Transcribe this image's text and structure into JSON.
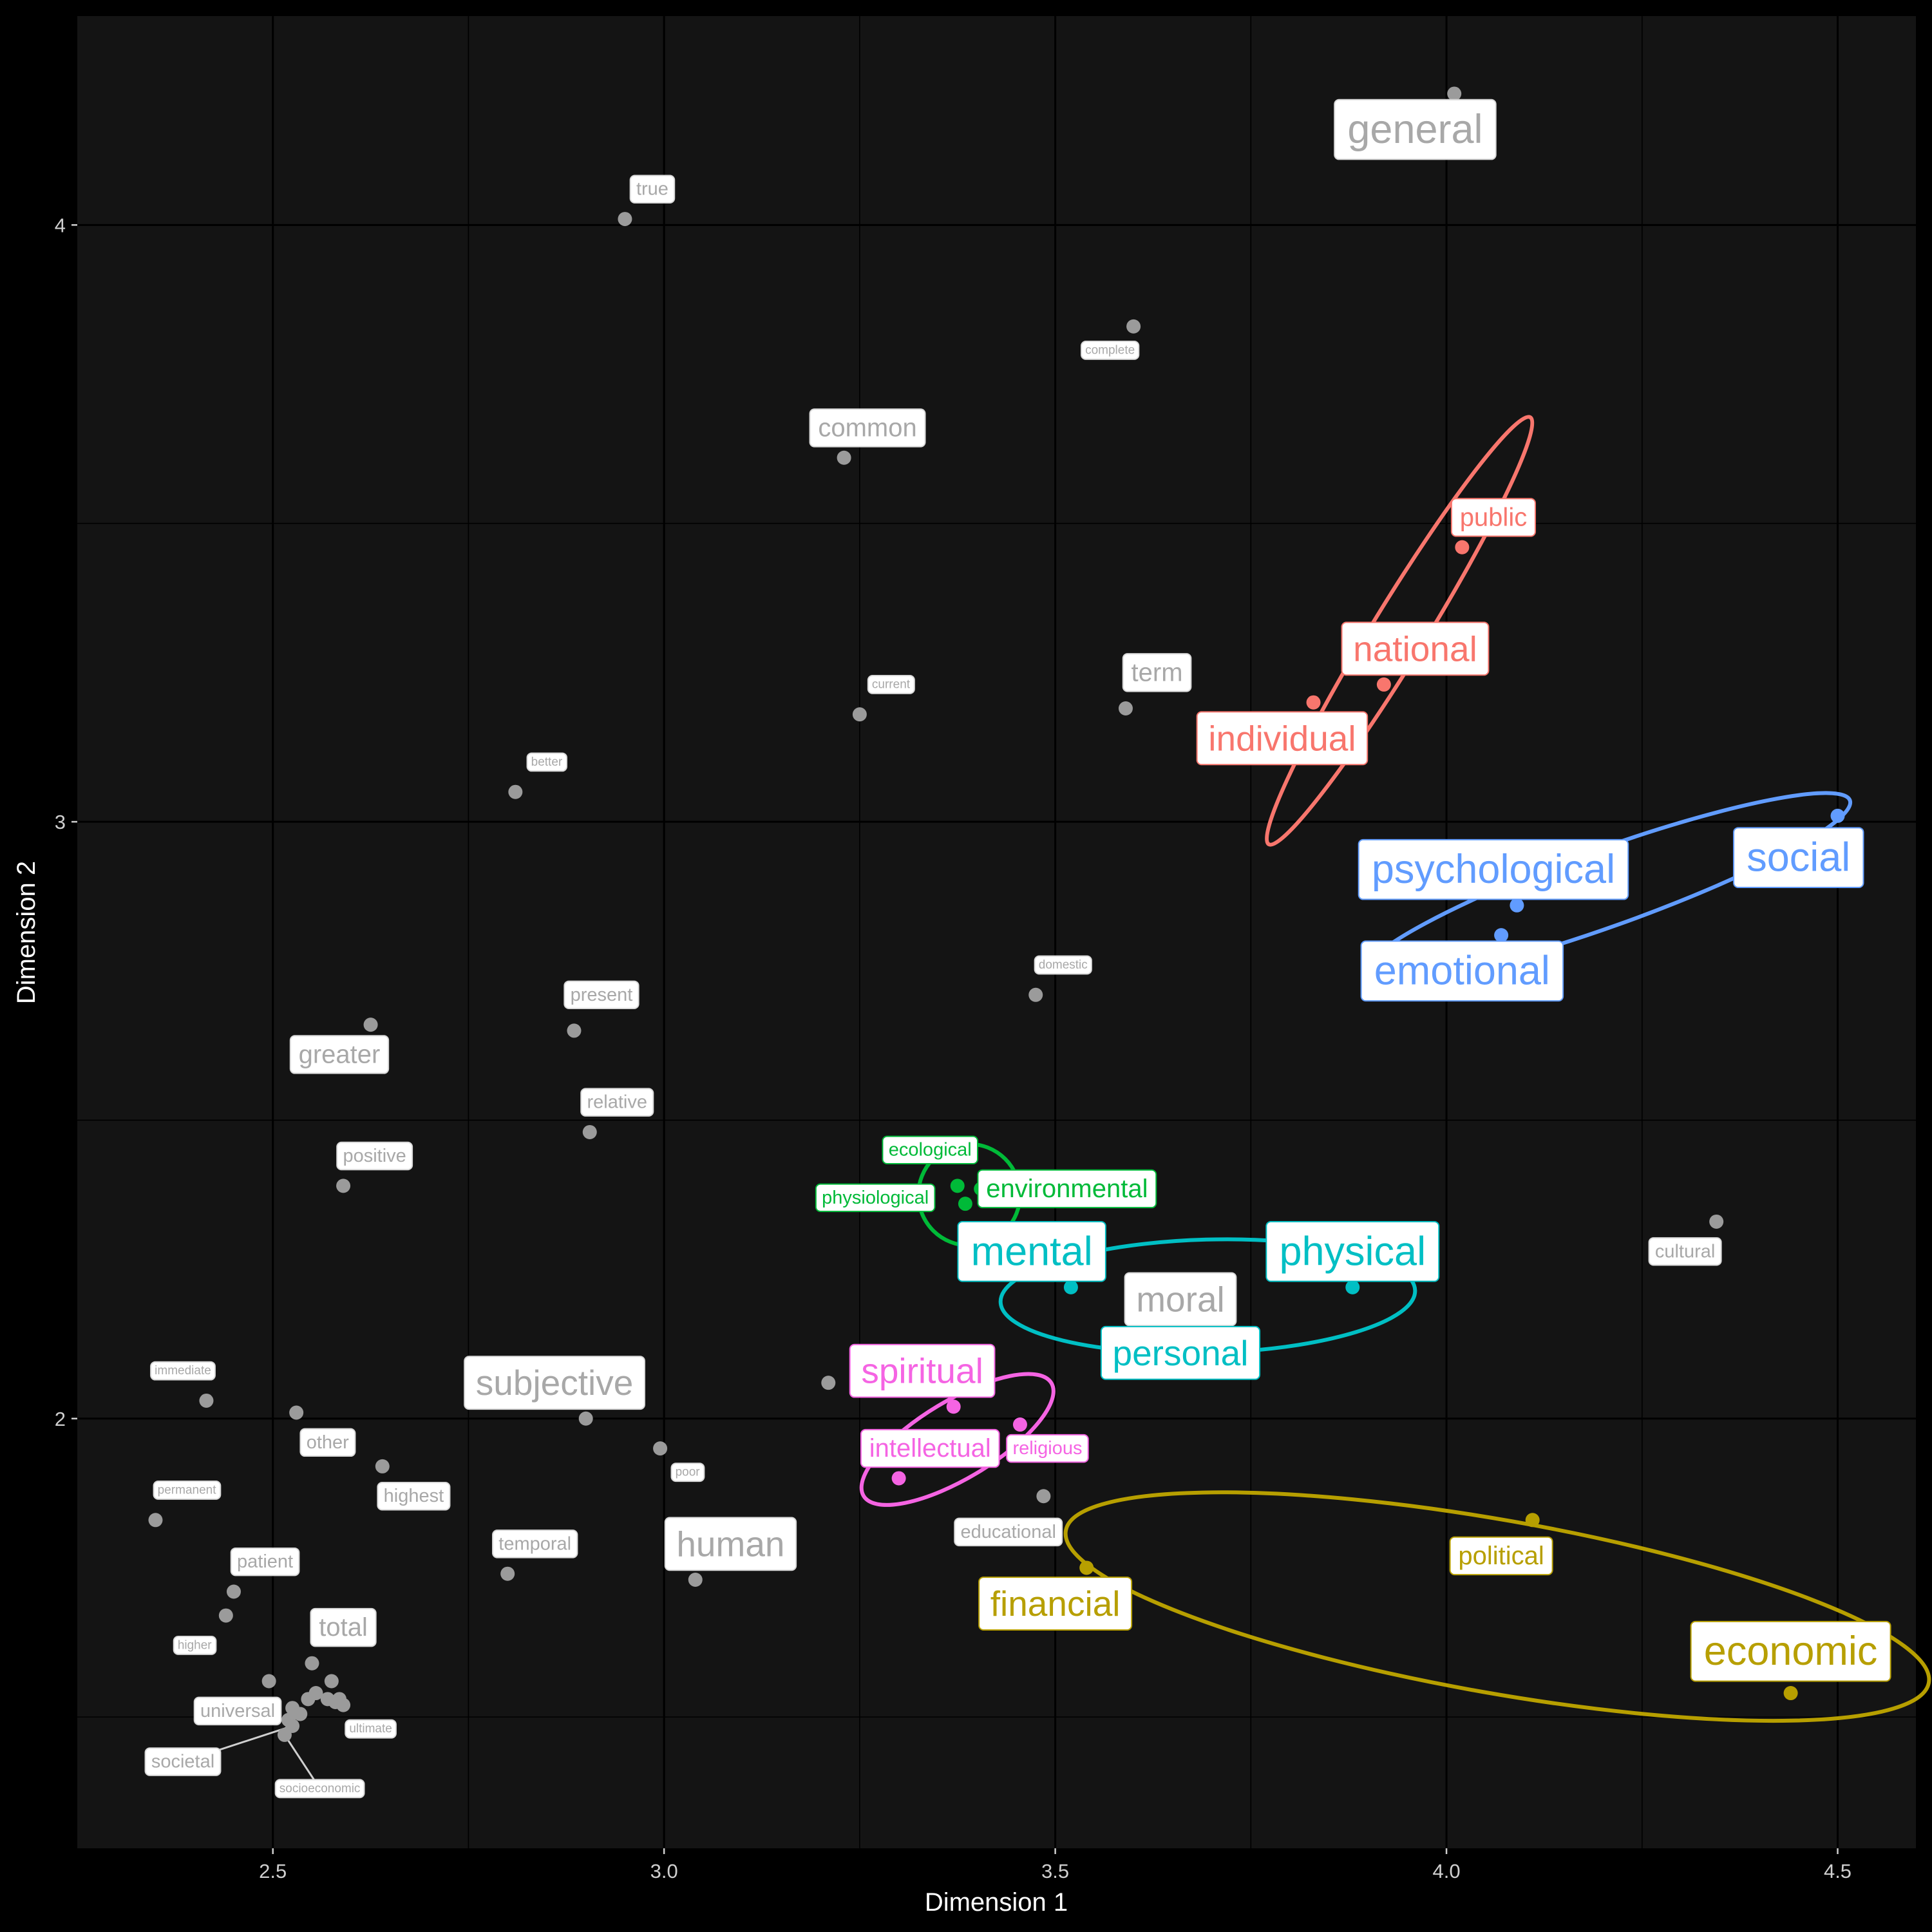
{
  "chart_data": {
    "type": "scatter",
    "title": "",
    "xlabel": "Dimension 1",
    "ylabel": "Dimension 2",
    "xlim": [
      2.25,
      4.6
    ],
    "ylim": [
      1.28,
      4.35
    ],
    "x_ticks": [
      2.5,
      3.0,
      3.5,
      4.0,
      4.5
    ],
    "x_tick_labels": [
      "2.5",
      "3.0",
      "3.5",
      "4.0",
      "4.5"
    ],
    "y_ticks": [
      2,
      3,
      4
    ],
    "y_tick_labels": [
      "2",
      "3",
      "4"
    ],
    "grid": true,
    "background": "#141414",
    "clusters": [
      {
        "color": "#f8766d",
        "points": [
          {
            "label": "public",
            "x": 4.02,
            "y": 3.46,
            "label_x": 4.06,
            "label_y": 3.51,
            "size": "medium"
          },
          {
            "label": "national",
            "x": 3.92,
            "y": 3.23,
            "label_x": 3.96,
            "label_y": 3.29,
            "size": "large"
          },
          {
            "label": "individual",
            "x": 3.83,
            "y": 3.2,
            "label_x": 3.79,
            "label_y": 3.14,
            "size": "large"
          }
        ],
        "ellipse": {
          "cx": 3.94,
          "cy": 3.32,
          "rx": 0.32,
          "ry": 0.045,
          "angle": -58.5
        }
      },
      {
        "color": "#619cff",
        "points": [
          {
            "label": "social",
            "x": 4.5,
            "y": 3.01,
            "label_x": 4.45,
            "label_y": 2.94,
            "size": "xlarge"
          },
          {
            "label": "psychological",
            "x": 4.09,
            "y": 2.86,
            "label_x": 4.06,
            "label_y": 2.92,
            "size": "xlarge"
          },
          {
            "label": "emotional",
            "x": 4.07,
            "y": 2.81,
            "label_x": 4.02,
            "label_y": 2.75,
            "size": "xlarge"
          }
        ],
        "ellipse": {
          "cx": 4.205,
          "cy": 2.89,
          "rx": 0.33,
          "ry": 0.065,
          "angle": -19.7
        }
      },
      {
        "color": "#00ba38",
        "points": [
          {
            "label": "ecological",
            "x": 3.375,
            "y": 2.39,
            "label_x": 3.34,
            "label_y": 2.45,
            "size": "small"
          },
          {
            "label": "environmental",
            "x": 3.405,
            "y": 2.385,
            "label_x": 3.515,
            "label_y": 2.385,
            "size": "medium"
          },
          {
            "label": "physiological",
            "x": 3.385,
            "y": 2.36,
            "label_x": 3.27,
            "label_y": 2.37,
            "size": "small"
          }
        ],
        "ellipse": {
          "cx": 3.39,
          "cy": 2.375,
          "rx": 0.065,
          "ry": 0.085,
          "angle": 0
        }
      },
      {
        "color": "#00bfc4",
        "points": [
          {
            "label": "mental",
            "x": 3.52,
            "y": 2.22,
            "label_x": 3.47,
            "label_y": 2.28,
            "size": "xlarge"
          },
          {
            "label": "physical",
            "x": 3.88,
            "y": 2.22,
            "label_x": 3.88,
            "label_y": 2.28,
            "size": "xlarge"
          },
          {
            "label": "personal",
            "x": 3.66,
            "y": 2.14,
            "label_x": 3.66,
            "label_y": 2.11,
            "size": "large"
          }
        ],
        "ellipse": {
          "cx": 3.695,
          "cy": 2.205,
          "rx": 0.265,
          "ry": 0.095,
          "angle": -1.6
        }
      },
      {
        "color": "#f564e3",
        "points": [
          {
            "label": "spiritual",
            "x": 3.37,
            "y": 2.02,
            "label_x": 3.33,
            "label_y": 2.08,
            "size": "large"
          },
          {
            "label": "intellectual",
            "x": 3.3,
            "y": 1.9,
            "label_x": 3.34,
            "label_y": 1.95,
            "size": "medium"
          },
          {
            "label": "religious",
            "x": 3.455,
            "y": 1.99,
            "label_x": 3.49,
            "label_y": 1.95,
            "size": "small"
          }
        ],
        "ellipse": {
          "cx": 3.375,
          "cy": 1.965,
          "rx": 0.14,
          "ry": 0.065,
          "angle": -31
        }
      },
      {
        "color": "#b79f00",
        "points": [
          {
            "label": "political",
            "x": 4.11,
            "y": 1.83,
            "label_x": 4.07,
            "label_y": 1.77,
            "size": "medium"
          },
          {
            "label": "financial",
            "x": 3.54,
            "y": 1.75,
            "label_x": 3.5,
            "label_y": 1.69,
            "size": "large"
          },
          {
            "label": "economic",
            "x": 4.44,
            "y": 1.54,
            "label_x": 4.44,
            "label_y": 1.61,
            "size": "xlarge"
          }
        ],
        "ellipse": {
          "cx": 4.065,
          "cy": 1.685,
          "rx": 0.56,
          "ry": 0.145,
          "angle": 10
        }
      }
    ],
    "gray_points": [
      {
        "label": "general",
        "x": 4.01,
        "y": 4.22,
        "label_x": 3.96,
        "label_y": 4.16,
        "size": "xlarge"
      },
      {
        "label": "true",
        "x": 2.95,
        "y": 4.01,
        "label_x": 2.985,
        "label_y": 4.06,
        "size": "small"
      },
      {
        "label": "complete",
        "x": 3.6,
        "y": 3.83,
        "label_x": 3.57,
        "label_y": 3.79,
        "size": "xsmall"
      },
      {
        "label": "common",
        "x": 3.23,
        "y": 3.61,
        "label_x": 3.26,
        "label_y": 3.66,
        "size": "medium"
      },
      {
        "label": "term",
        "x": 3.59,
        "y": 3.19,
        "label_x": 3.63,
        "label_y": 3.25,
        "size": "medium"
      },
      {
        "label": "current",
        "x": 3.25,
        "y": 3.18,
        "label_x": 3.29,
        "label_y": 3.23,
        "size": "xsmall"
      },
      {
        "label": "better",
        "x": 2.81,
        "y": 3.05,
        "label_x": 2.85,
        "label_y": 3.1,
        "size": "xsmall"
      },
      {
        "label": "domestic",
        "x": 3.475,
        "y": 2.71,
        "label_x": 3.51,
        "label_y": 2.76,
        "size": "xsmall"
      },
      {
        "label": "present",
        "x": 2.885,
        "y": 2.65,
        "label_x": 2.92,
        "label_y": 2.71,
        "size": "small"
      },
      {
        "label": "greater",
        "x": 2.625,
        "y": 2.66,
        "label_x": 2.585,
        "label_y": 2.61,
        "size": "medium"
      },
      {
        "label": "relative",
        "x": 2.905,
        "y": 2.48,
        "label_x": 2.94,
        "label_y": 2.53,
        "size": "small"
      },
      {
        "label": "positive",
        "x": 2.59,
        "y": 2.39,
        "label_x": 2.63,
        "label_y": 2.44,
        "size": "small"
      },
      {
        "label": "cultural",
        "x": 4.345,
        "y": 2.33,
        "label_x": 4.305,
        "label_y": 2.28,
        "size": "small"
      },
      {
        "label": "moral",
        "x": 3.21,
        "y": 2.06,
        "label_x": 3.66,
        "label_y": 2.2,
        "size": "large"
      },
      {
        "label": "subjective",
        "x": 2.9,
        "y": 2.0,
        "label_x": 2.86,
        "label_y": 2.06,
        "size": "large"
      },
      {
        "label": "immediate",
        "x": 2.415,
        "y": 2.03,
        "label_x": 2.385,
        "label_y": 2.08,
        "size": "xsmall"
      },
      {
        "label": "other",
        "x": 2.53,
        "y": 2.01,
        "label_x": 2.57,
        "label_y": 1.96,
        "size": "small"
      },
      {
        "label": "poor",
        "x": 2.995,
        "y": 1.95,
        "label_x": 3.03,
        "label_y": 1.91,
        "size": "xsmall"
      },
      {
        "label": "highest",
        "x": 2.64,
        "y": 1.92,
        "label_x": 2.68,
        "label_y": 1.87,
        "size": "small"
      },
      {
        "label": "permanent",
        "x": 2.35,
        "y": 1.83,
        "label_x": 2.39,
        "label_y": 1.88,
        "size": "xsmall"
      },
      {
        "label": "educational",
        "x": 3.485,
        "y": 1.87,
        "label_x": 3.44,
        "label_y": 1.81,
        "size": "small"
      },
      {
        "label": "human",
        "x": 3.04,
        "y": 1.73,
        "label_x": 3.085,
        "label_y": 1.79,
        "size": "large"
      },
      {
        "label": "temporal",
        "x": 2.8,
        "y": 1.74,
        "label_x": 2.835,
        "label_y": 1.79,
        "size": "small"
      },
      {
        "label": "patient",
        "x": 2.45,
        "y": 1.71,
        "label_x": 2.49,
        "label_y": 1.76,
        "size": "small"
      },
      {
        "label": "higher",
        "x": 2.44,
        "y": 1.67,
        "label_x": 2.4,
        "label_y": 1.62,
        "size": "xsmall"
      },
      {
        "label": "total",
        "x": 2.55,
        "y": 1.59,
        "label_x": 2.59,
        "label_y": 1.65,
        "size": "medium"
      },
      {
        "label": "universal",
        "x": 2.495,
        "y": 1.56,
        "label_x": 2.455,
        "label_y": 1.51,
        "size": "small"
      },
      {
        "label": "ultimate",
        "x": 2.585,
        "y": 1.53,
        "label_x": 2.625,
        "label_y": 1.48,
        "size": "xsmall"
      },
      {
        "label": "societal",
        "x": 2.525,
        "y": 1.485,
        "label_x": 2.385,
        "label_y": 1.425,
        "size": "small",
        "leader": true
      },
      {
        "label": "socioeconomic",
        "x": 2.515,
        "y": 1.47,
        "label_x": 2.56,
        "label_y": 1.38,
        "size": "xsmall",
        "leader": true
      }
    ],
    "extra_gray_dots": [
      {
        "x": 2.575,
        "y": 1.56
      },
      {
        "x": 2.555,
        "y": 1.54
      },
      {
        "x": 2.545,
        "y": 1.53
      },
      {
        "x": 2.57,
        "y": 1.53
      },
      {
        "x": 2.58,
        "y": 1.525
      },
      {
        "x": 2.525,
        "y": 1.515
      },
      {
        "x": 2.535,
        "y": 1.505
      },
      {
        "x": 2.59,
        "y": 1.52
      },
      {
        "x": 2.52,
        "y": 1.495
      }
    ]
  }
}
